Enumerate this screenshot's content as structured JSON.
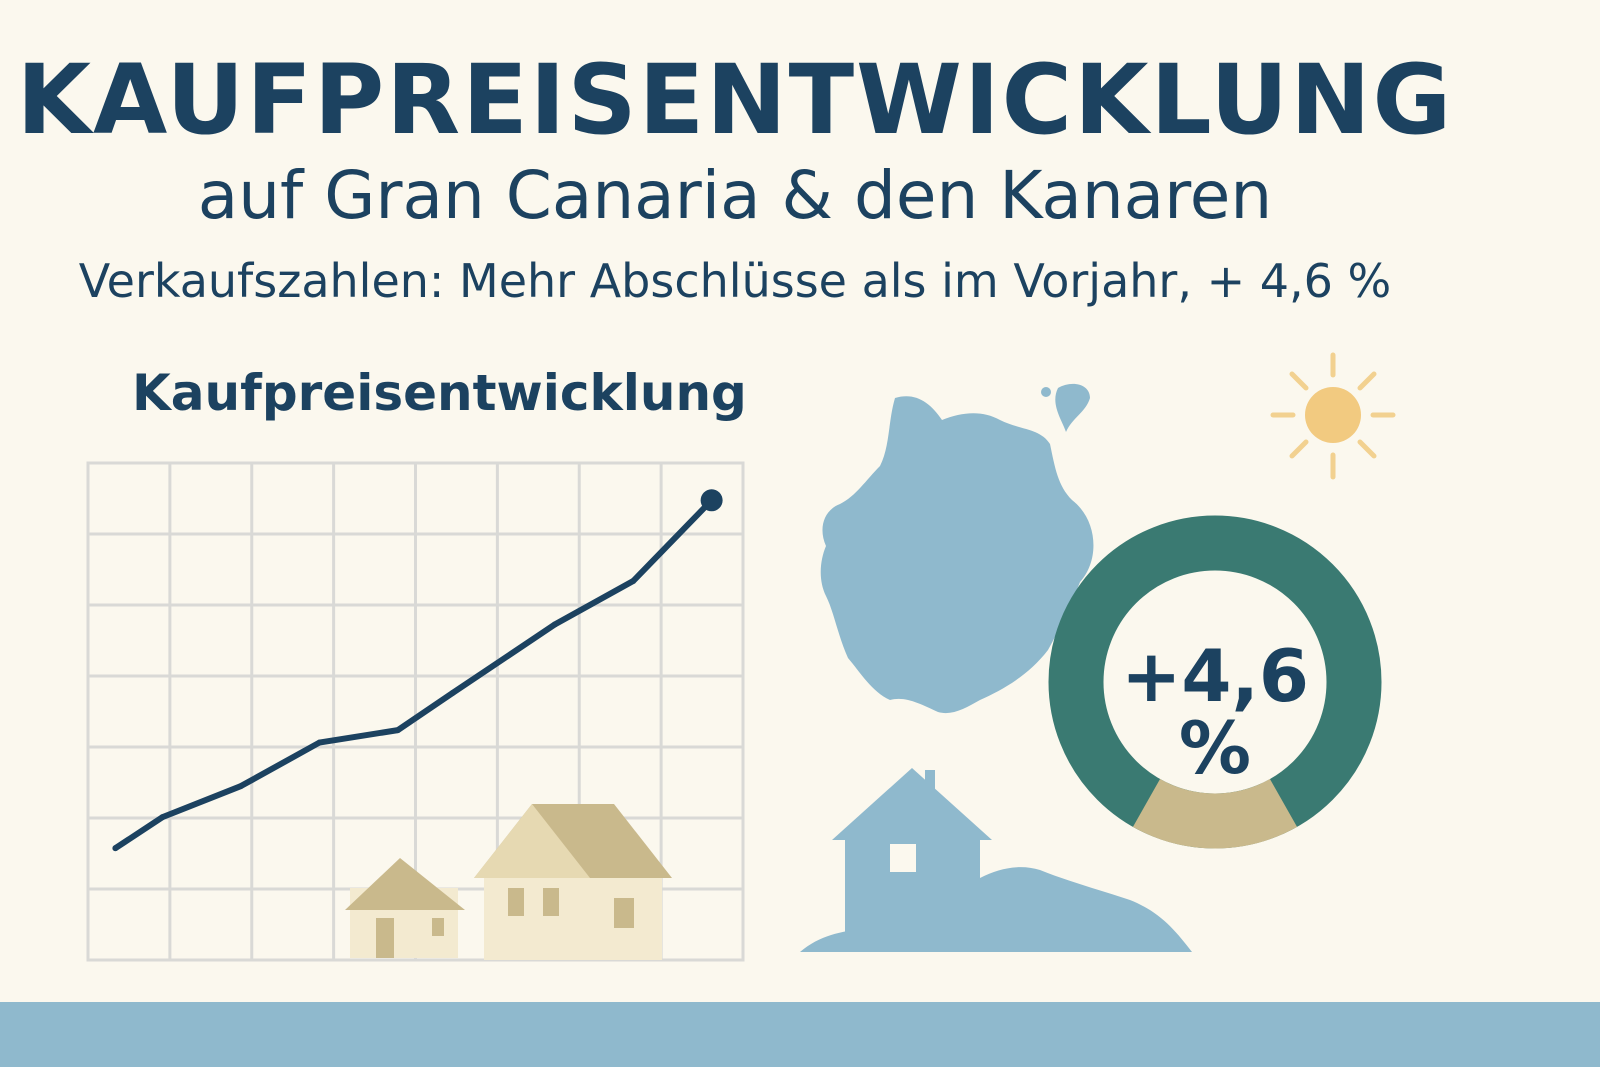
{
  "header": {
    "title": "KAUFPREISENTWICKLUNG",
    "subtitle": "auf Gran Canaria & den Kanaren",
    "tagline": "Verkaufszahlen: Mehr Abschlüsse als im Vorjahr, + 4,6 %"
  },
  "chart_data": {
    "type": "line",
    "title": "Kaufpreisentwicklung",
    "xlabel": "",
    "ylabel": "",
    "grid": true,
    "x": [
      0,
      0.6,
      1.6,
      2.6,
      3.6,
      4.3,
      5.6,
      6.6,
      7.6
    ],
    "values": [
      1.8,
      2.3,
      2.8,
      3.5,
      3.7,
      4.3,
      5.4,
      6.1,
      7.4
    ],
    "xlim": [
      -0.35,
      8.0
    ],
    "ylim": [
      0,
      8
    ],
    "line_color": "#1c4260"
  },
  "ring": {
    "label": "+4,6 %",
    "percent": 4.6,
    "colors": {
      "main": "#3a7a72",
      "accent": "#c9b98c"
    }
  },
  "icons": [
    "houses-illustration",
    "gran-canaria-island-icon",
    "sun-icon",
    "island-house-icon"
  ],
  "colors": {
    "background": "#fbf8ee",
    "text": "#1c4260",
    "island": "#8fb9cd",
    "house": "#f3ead0",
    "roof": "#c9b98c"
  }
}
